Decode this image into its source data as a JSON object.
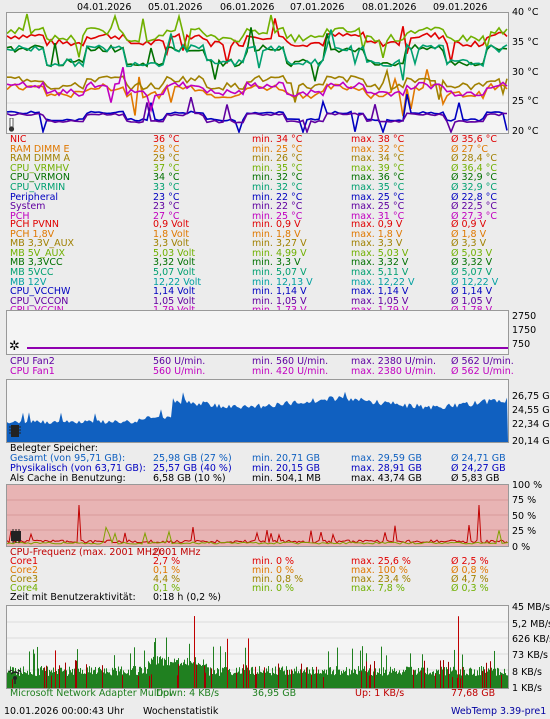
{
  "dates": [
    "04.01.2026",
    "05.01.2026",
    "06.01.2026",
    "07.01.2026",
    "08.01.2026",
    "09.01.2026"
  ],
  "temp_axis": [
    "40 °C",
    "35 °C",
    "30 °C",
    "25 °C",
    "20 °C"
  ],
  "temps": [
    {
      "name": "NIC",
      "cur": "36 °C",
      "min": "min. 34 °C",
      "max": "max. 38 °C",
      "avg": "Ø 35,6 °C",
      "color": "#e00000"
    },
    {
      "name": "RAM DIMM E",
      "cur": "28 °C",
      "min": "min. 25 °C",
      "max": "max. 32 °C",
      "avg": "Ø 27 °C",
      "color": "#e07800"
    },
    {
      "name": "RAM DIMM A",
      "cur": "29 °C",
      "min": "min. 26 °C",
      "max": "max. 34 °C",
      "avg": "Ø 28,4 °C",
      "color": "#a08000"
    },
    {
      "name": "CPU_VRMHV",
      "cur": "37 °C",
      "min": "min. 35 °C",
      "max": "max. 39 °C",
      "avg": "Ø 36,4 °C",
      "color": "#70b000"
    },
    {
      "name": "CPU_VRMON",
      "cur": "34 °C",
      "min": "min. 32 °C",
      "max": "max. 36 °C",
      "avg": "Ø 32,9 °C",
      "color": "#007000"
    },
    {
      "name": "CPU_VRMIN",
      "cur": "33 °C",
      "min": "min. 32 °C",
      "max": "max. 35 °C",
      "avg": "Ø 32,9 °C",
      "color": "#00a070"
    },
    {
      "name": "Peripheral",
      "cur": "23 °C",
      "min": "min. 22 °C",
      "max": "max. 25 °C",
      "avg": "Ø 22,8 °C",
      "color": "#0000c0"
    },
    {
      "name": "System",
      "cur": "23 °C",
      "min": "min. 22 °C",
      "max": "max. 25 °C",
      "avg": "Ø 22,5 °C",
      "color": "#6000a0"
    },
    {
      "name": "PCH",
      "cur": "27 °C",
      "min": "min. 25 °C",
      "max": "max. 31 °C",
      "avg": "Ø 27,3 °C",
      "color": "#c000c0"
    }
  ],
  "volts": [
    {
      "name": "PCH PVNN",
      "cur": "0,9 Volt",
      "min": "min. 0,9 V",
      "max": "max. 0,9 V",
      "avg": "Ø 0,9 V",
      "color": "#e00000"
    },
    {
      "name": "PCH 1,8V",
      "cur": "1,8 Volt",
      "min": "min. 1,8 V",
      "max": "max. 1,8 V",
      "avg": "Ø 1,8 V",
      "color": "#e07800"
    },
    {
      "name": "MB 3,3V_AUX",
      "cur": "3,3 Volt",
      "min": "min. 3,27 V",
      "max": "max. 3,3 V",
      "avg": "Ø 3,3 V",
      "color": "#a08000"
    },
    {
      "name": "MB 5V_AUX",
      "cur": "5,03 Volt",
      "min": "min. 4,99 V",
      "max": "max. 5,03 V",
      "avg": "Ø 5,03 V",
      "color": "#70b000"
    },
    {
      "name": "MB 3,3VCC",
      "cur": "3,32 Volt",
      "min": "min. 3,3 V",
      "max": "max. 3,32 V",
      "avg": "Ø 3,32 V",
      "color": "#007000"
    },
    {
      "name": "MB 5VCC",
      "cur": "5,07 Volt",
      "min": "min. 5,07 V",
      "max": "max. 5,11 V",
      "avg": "Ø 5,07 V",
      "color": "#00a070"
    },
    {
      "name": "MB 12V",
      "cur": "12,22 Volt",
      "min": "min. 12,13 V",
      "max": "max. 12,22 V",
      "avg": "Ø 12,22 V",
      "color": "#00a0a0"
    },
    {
      "name": "CPU_VCCHW",
      "cur": "1,14 Volt",
      "min": "min. 1,14 V",
      "max": "max. 1,14 V",
      "avg": "Ø 1,14 V",
      "color": "#0000c0"
    },
    {
      "name": "CPU_VCCON",
      "cur": "1,05 Volt",
      "min": "min. 1,05 V",
      "max": "max. 1,05 V",
      "avg": "Ø 1,05 V",
      "color": "#6000a0"
    },
    {
      "name": "CPU_VCCIN",
      "cur": "1,79 Volt",
      "min": "min. 1,73 V",
      "max": "max. 1,79 V",
      "avg": "Ø 1,78 V",
      "color": "#c000c0"
    }
  ],
  "fan_axis": [
    "2750",
    "1750",
    "750"
  ],
  "fans": [
    {
      "name": "CPU Fan2",
      "cur": "560 U/min.",
      "min": "min. 560 U/min.",
      "max": "max. 2380 U/min.",
      "avg": "Ø 562 U/min.",
      "color": "#6000a0"
    },
    {
      "name": "CPU Fan1",
      "cur": "560 U/min.",
      "min": "min. 420 U/min.",
      "max": "max. 2380 U/min.",
      "avg": "Ø 562 U/min.",
      "color": "#c000c0"
    }
  ],
  "mem_axis": [
    "26,75 GB",
    "24,55 GB",
    "22,34 GB",
    "20,14 GB"
  ],
  "mem_title": "Belegter Speicher:",
  "mem": [
    {
      "name": "Gesamt (von 95,71 GB):",
      "cur": "25,98 GB (27 %)",
      "min": "min. 20,71 GB",
      "max": "max. 29,59 GB",
      "avg": "Ø 24,71 GB",
      "color": "#1060c0"
    },
    {
      "name": "Physikalisch (von 63,71 GB):",
      "cur": "25,57 GB (40 %)",
      "min": "min. 20,15 GB",
      "max": "max. 28,91 GB",
      "avg": "Ø 24,27 GB",
      "color": "#0000c0"
    },
    {
      "name": "Als Cache in Benutzung:",
      "cur": "6,58 GB (10 %)",
      "min": "min. 504,1 MB",
      "max": "max. 43,74 GB",
      "avg": "Ø 5,83 GB",
      "color": "#000000"
    }
  ],
  "cpu_axis": [
    "100 %",
    "75 %",
    "50 %",
    "25 %",
    "0 %"
  ],
  "cpu_title": {
    "name": "CPU-Frequenz (max. 2001 MHz):",
    "cur": "2001 MHz"
  },
  "cpu": [
    {
      "name": "Core1",
      "cur": "2,7 %",
      "min": "min. 0 %",
      "max": "max. 25,6 %",
      "avg": "Ø 2,5 %",
      "color": "#e00000"
    },
    {
      "name": "Core2",
      "cur": "0,1 %",
      "min": "min. 0 %",
      "max": "max. 100 %",
      "avg": "Ø 0,8 %",
      "color": "#e07800"
    },
    {
      "name": "Core3",
      "cur": "4,4 %",
      "min": "min. 0,8 %",
      "max": "max. 23,4 %",
      "avg": "Ø 4,7 %",
      "color": "#a08000"
    },
    {
      "name": "Core4",
      "cur": "0,1 %",
      "min": "min. 0 %",
      "max": "max. 7,8 %",
      "avg": "Ø 0,3 %",
      "color": "#70b000"
    }
  ],
  "user_activity": {
    "label": "Zeit mit Benutzeraktivität:",
    "value": "0:18 h (0,2 %)"
  },
  "net_axis": [
    "45 MB/s",
    "5,2 MB/s",
    "626 KB/s",
    "73 KB/s",
    "8 KB/s",
    "1 KB/s"
  ],
  "net": {
    "adapter": "Microsoft Network Adapter Multipl",
    "down": "Down: 4 KB/s",
    "down_total": "36,95 GB",
    "up": "Up: 1 KB/s",
    "up_total": "77,68 GB"
  },
  "footer": {
    "datetime": "10.01.2026 00:00:43 Uhr",
    "mode": "Wochenstatistik",
    "version": "WebTemp 3.39-pre1"
  },
  "colors": {
    "net_down": "#208020",
    "net_up": "#c00000",
    "memory": "#1060c0",
    "cpu_bg": "#e8b4b4",
    "cpu_line": "#c00000",
    "version": "#0000a0"
  }
}
